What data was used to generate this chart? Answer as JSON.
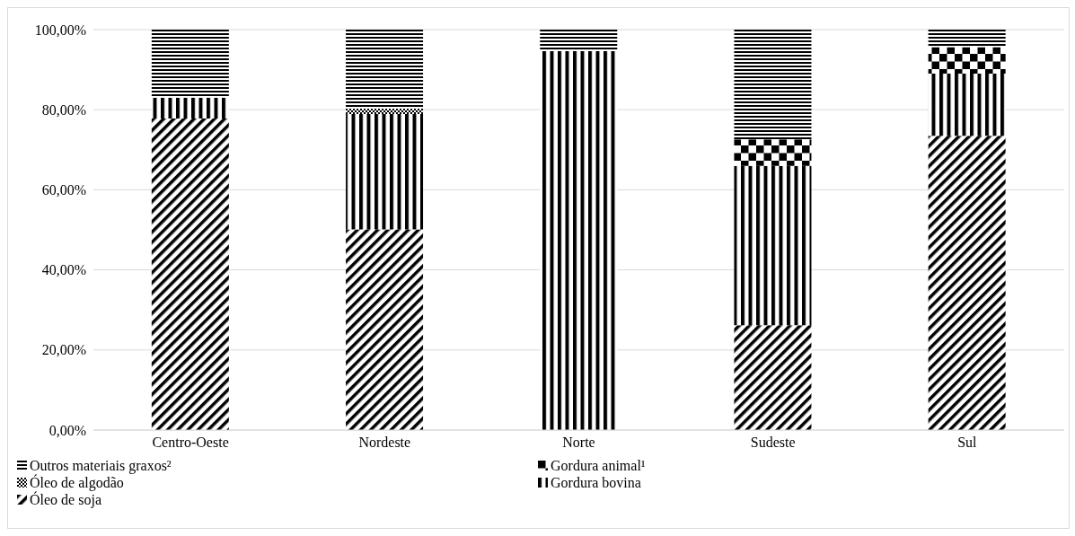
{
  "chart_data": {
    "type": "bar",
    "stacked": true,
    "categories": [
      "Centro-Oeste",
      "Nordeste",
      "Norte",
      "Sudeste",
      "Sul"
    ],
    "series": [
      {
        "name": "Óleo de soja",
        "color": "#000000",
        "values": [
          77.8,
          50.1,
          0,
          26.2,
          73.5
        ]
      },
      {
        "name": "Gordura bovina",
        "color": "#000000",
        "values": [
          5.2,
          28.8,
          94.6,
          39.8,
          15.5
        ]
      },
      {
        "name": "Óleo de algodão",
        "color": "#000000",
        "values": [
          0,
          1.4,
          0,
          0,
          0
        ]
      },
      {
        "name": "Gordura animal¹",
        "color": "#000000",
        "values": [
          0,
          0,
          0,
          6.6,
          6.6
        ]
      },
      {
        "name": "Outros materiais graxos²",
        "color": "#000000",
        "values": [
          17.0,
          19.7,
          5.4,
          27.4,
          4.4
        ]
      }
    ],
    "ylim": [
      0,
      100
    ],
    "yticks": [
      {
        "value": 0,
        "label": "0,00%"
      },
      {
        "value": 20,
        "label": "20,00%"
      },
      {
        "value": 40,
        "label": "40,00%"
      },
      {
        "value": 60,
        "label": "60,00%"
      },
      {
        "value": 80,
        "label": "80,00%"
      },
      {
        "value": 100,
        "label": "100,00%"
      }
    ],
    "grid": "y",
    "legend": "bottom left"
  }
}
